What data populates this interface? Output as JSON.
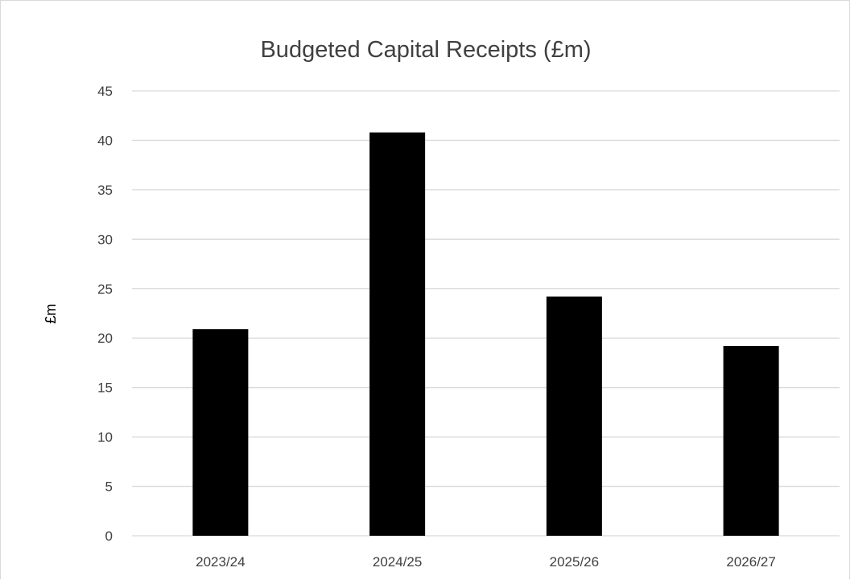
{
  "chart_data": {
    "type": "bar",
    "title": "Budgeted Capital Receipts (£m)",
    "xlabel": "",
    "ylabel": "£m",
    "categories": [
      "2023/24",
      "2024/25",
      "2025/26",
      "2026/27"
    ],
    "values": [
      20.9,
      40.8,
      24.2,
      19.2
    ],
    "ylim": [
      0,
      45
    ],
    "yticks": [
      "0",
      "5",
      "10",
      "15",
      "20",
      "25",
      "30",
      "35",
      "40",
      "45"
    ],
    "grid": true,
    "legend": "none",
    "bar_color": "#000000"
  }
}
